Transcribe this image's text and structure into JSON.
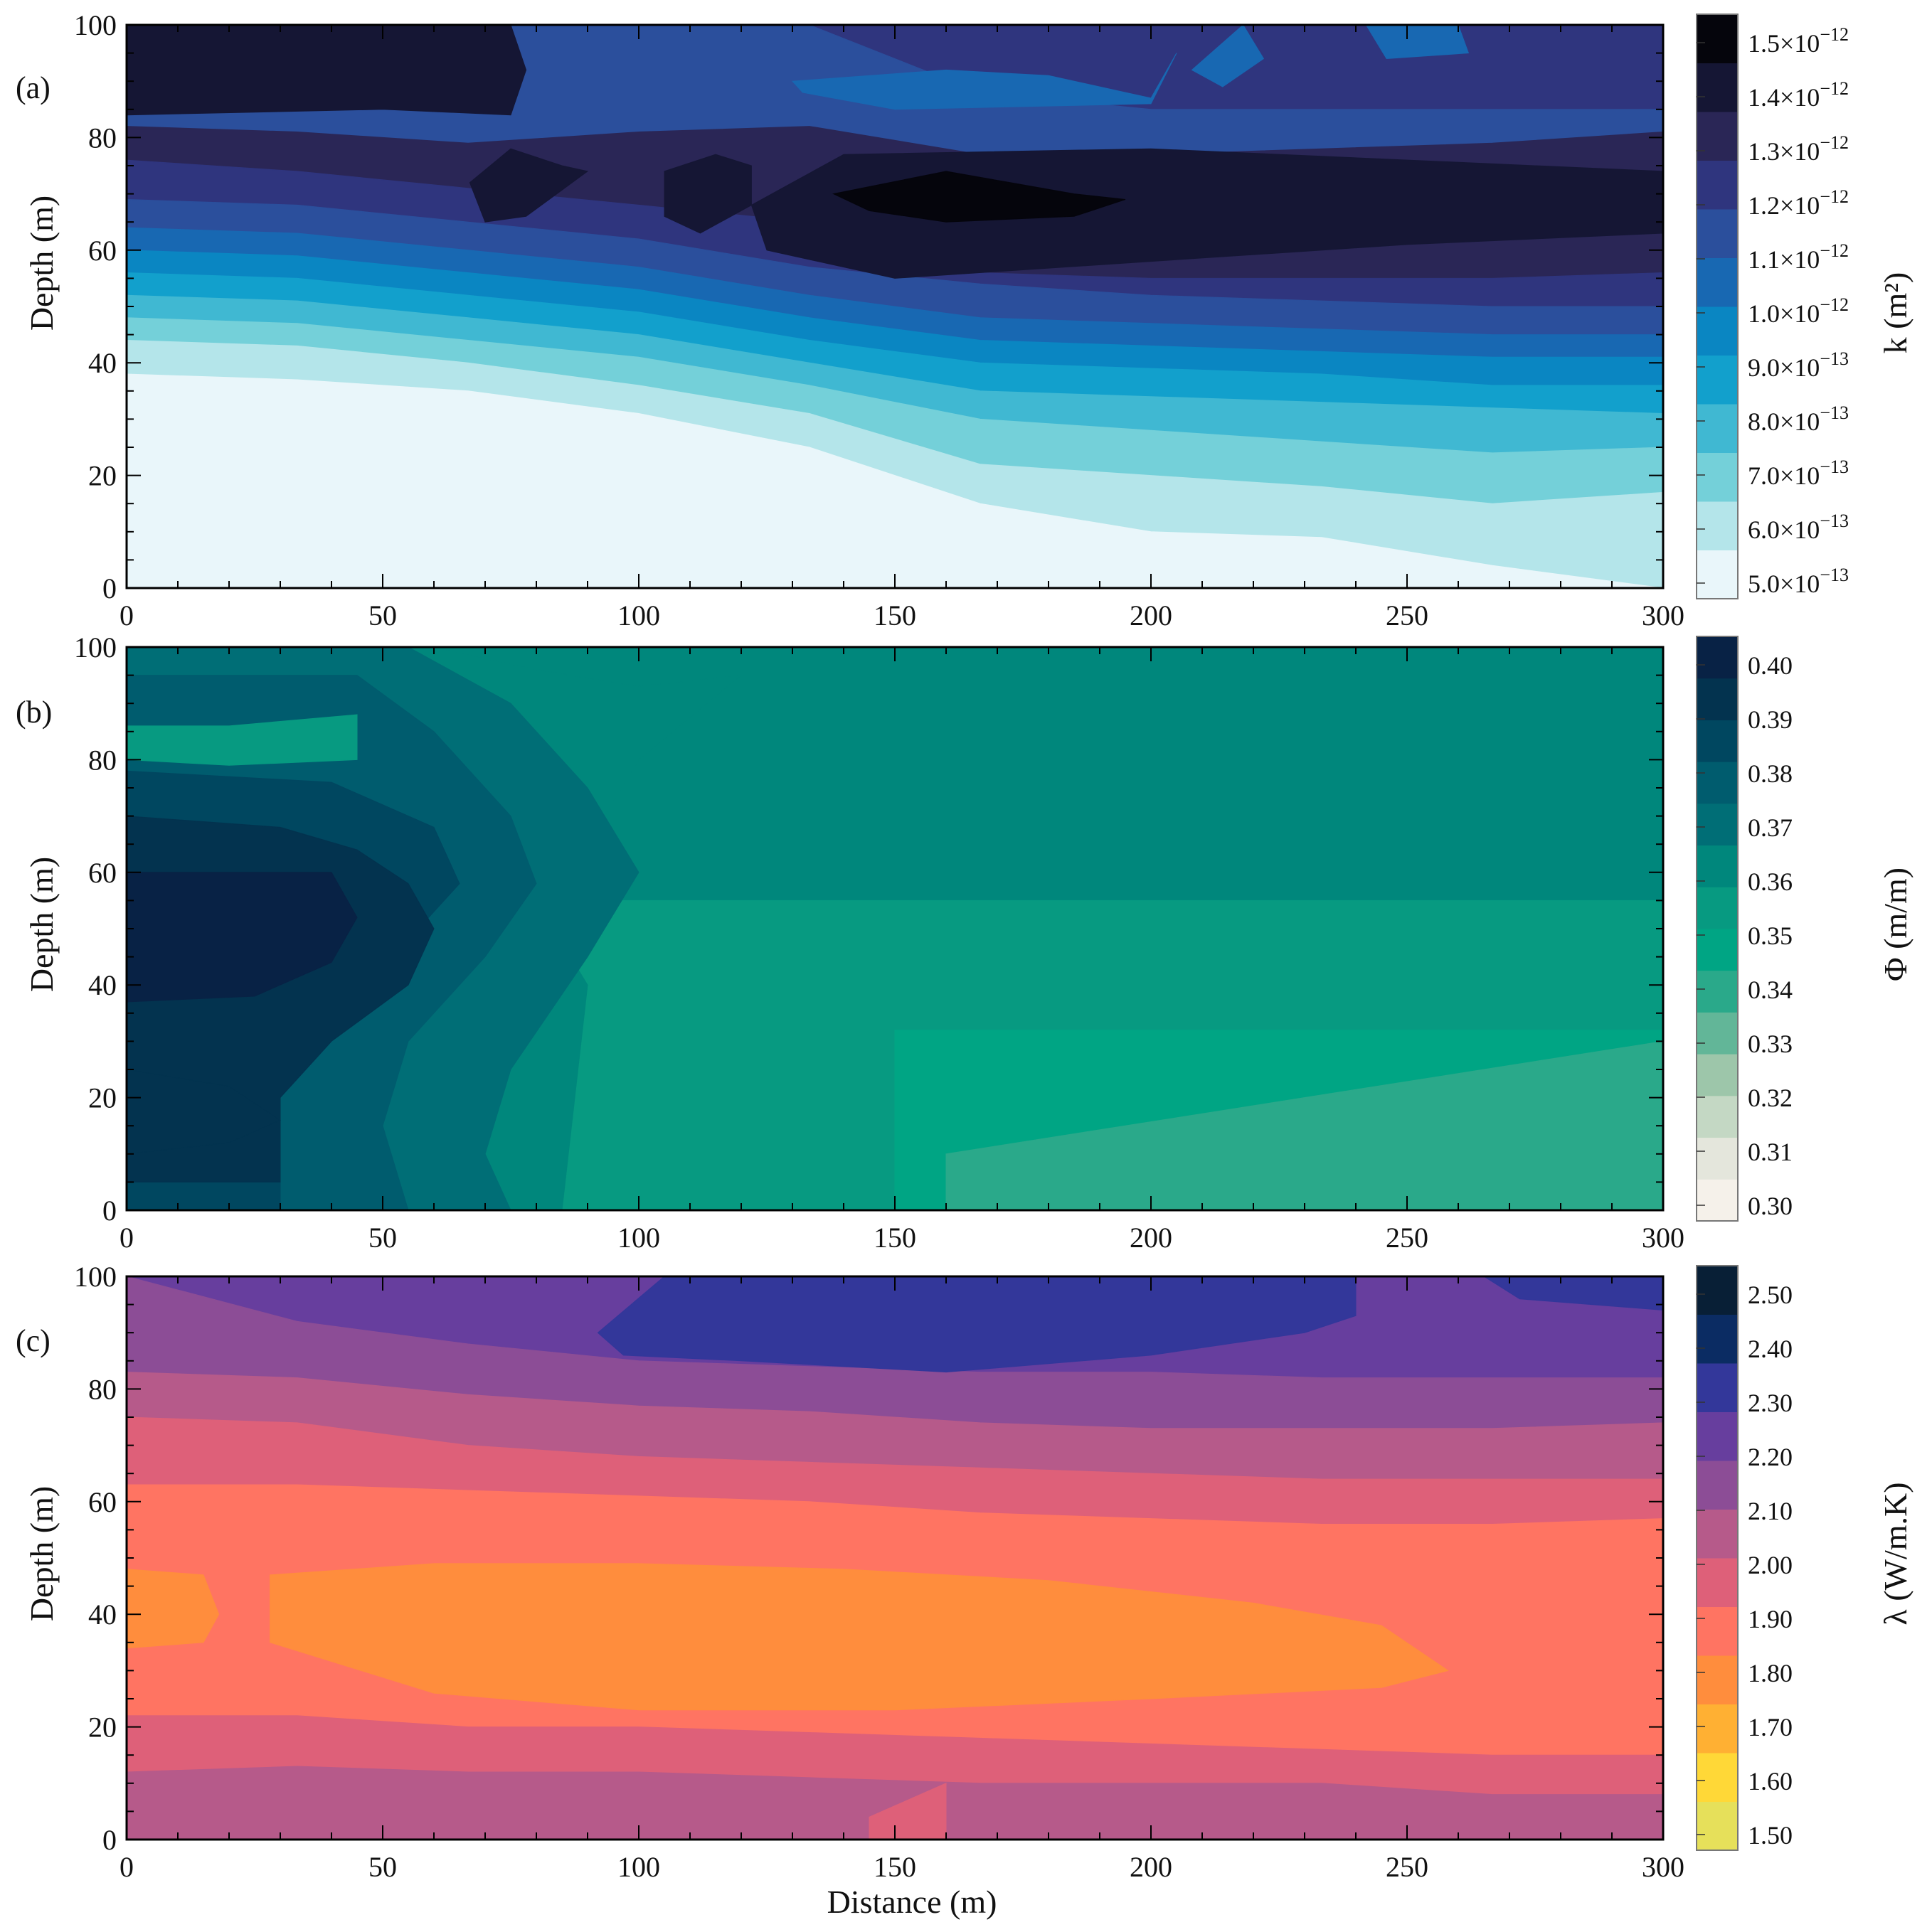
{
  "chart_data": [
    {
      "type": "heatmap",
      "panel_label": "(a)",
      "ylabel": "Depth (m)",
      "xlim": [
        0,
        300
      ],
      "ylim": [
        0,
        100
      ],
      "xticks": [
        "0",
        "50",
        "100",
        "150",
        "200",
        "250",
        "300"
      ],
      "yticks": [
        "0",
        "20",
        "40",
        "60",
        "80",
        "100"
      ],
      "colorbar": {
        "label": "k (m²)",
        "levels": [
          {
            "value": "5.0×10",
            "exp": "−13",
            "color": "#e9f6fa"
          },
          {
            "value": "6.0×10",
            "exp": "−13",
            "color": "#b4e5ea"
          },
          {
            "value": "7.0×10",
            "exp": "−13",
            "color": "#74d0d9"
          },
          {
            "value": "8.0×10",
            "exp": "−13",
            "color": "#40b8d2"
          },
          {
            "value": "9.0×10",
            "exp": "−13",
            "color": "#12a0cc"
          },
          {
            "value": "1.0×10",
            "exp": "−12",
            "color": "#0a86c2"
          },
          {
            "value": "1.1×10",
            "exp": "−12",
            "color": "#1868b2"
          },
          {
            "value": "1.2×10",
            "exp": "−12",
            "color": "#2b4f9c"
          },
          {
            "value": "1.3×10",
            "exp": "−12",
            "color": "#2f357e"
          },
          {
            "value": "1.4×10",
            "exp": "−12",
            "color": "#2a2656"
          },
          {
            "value": "1.5×10",
            "exp": "−12",
            "color": "#151634"
          }
        ],
        "top_color": "#05050c"
      },
      "bands": [
        {
          "top": [
            38,
            37,
            35,
            31,
            25,
            15,
            10,
            9,
            4,
            0
          ],
          "color": "#e9f6fa"
        },
        {
          "top": [
            44,
            43,
            40,
            36,
            31,
            22,
            20,
            18,
            15,
            17
          ],
          "color": "#b4e5ea"
        },
        {
          "top": [
            48,
            47,
            44,
            41,
            36,
            30,
            28,
            26,
            24,
            25
          ],
          "color": "#74d0d9"
        },
        {
          "top": [
            52,
            51,
            48,
            45,
            40,
            35,
            34,
            33,
            32,
            31
          ],
          "color": "#40b8d2"
        },
        {
          "top": [
            56,
            55,
            52,
            49,
            44,
            40,
            39,
            38,
            36,
            36
          ],
          "color": "#12a0cc"
        },
        {
          "top": [
            60,
            59,
            56,
            53,
            48,
            44,
            43,
            42,
            41,
            41
          ],
          "color": "#0a86c2"
        },
        {
          "top": [
            64,
            63,
            60,
            57,
            52,
            48,
            47,
            46,
            45,
            45
          ],
          "color": "#1868b2"
        },
        {
          "top": [
            69,
            68,
            65,
            62,
            57,
            54,
            52,
            51,
            50,
            50
          ],
          "color": "#2b4f9c"
        },
        {
          "top": [
            76,
            74,
            71,
            68,
            65,
            56,
            55,
            55,
            55,
            56
          ],
          "color": "#2f357e"
        },
        {
          "top": [
            82,
            81,
            79,
            81,
            82,
            77,
            77,
            78,
            79,
            81
          ],
          "color": "#2a2656"
        },
        {
          "top": [
            100,
            100,
            100,
            100,
            100,
            88,
            85,
            85,
            85,
            85
          ],
          "color": "#2b4f9c"
        },
        {
          "top": [
            100,
            100,
            100,
            100,
            100,
            100,
            100,
            100,
            100,
            100
          ],
          "color": "#2f357e"
        }
      ],
      "patches": [
        {
          "x": [
            0,
            50,
            75,
            78,
            75,
            50,
            0
          ],
          "y": [
            84,
            85,
            84,
            92,
            100,
            100,
            100
          ],
          "color": "#151634"
        },
        {
          "x": [
            67,
            75,
            85,
            90,
            78,
            70
          ],
          "y": [
            72,
            78,
            75,
            74,
            66,
            65
          ],
          "color": "#151634"
        },
        {
          "x": [
            105,
            115,
            122,
            122,
            112,
            105
          ],
          "y": [
            74,
            77,
            75,
            68,
            63,
            66
          ],
          "color": "#151634"
        },
        {
          "x": [
            122,
            140,
            200,
            300,
            300,
            250,
            200,
            150,
            125
          ],
          "y": [
            68,
            77,
            78,
            74,
            63,
            61,
            58,
            55,
            60
          ],
          "color": "#151634"
        },
        {
          "x": [
            138,
            160,
            185,
            195,
            185,
            160,
            145
          ],
          "y": [
            70,
            74,
            70,
            69,
            66,
            65,
            67
          ],
          "color": "#05050c"
        },
        {
          "x": [
            130,
            160,
            180,
            200,
            205,
            200,
            150,
            132
          ],
          "y": [
            90,
            92,
            91,
            87,
            95,
            86,
            85,
            88
          ],
          "color": "#1868b2"
        },
        {
          "x": [
            208,
            218,
            222,
            214
          ],
          "y": [
            92,
            100,
            94,
            89
          ],
          "color": "#1868b2"
        },
        {
          "x": [
            242,
            260,
            262,
            246
          ],
          "y": [
            100,
            100,
            95,
            94
          ],
          "color": "#1868b2"
        },
        {
          "x": [
            238,
            245,
            250,
            252,
            248,
            240
          ],
          "y": [
            0,
            4,
            5,
            0,
            0,
            0
          ],
          "color": "#e9f6fa"
        }
      ]
    },
    {
      "type": "heatmap",
      "panel_label": "(b)",
      "ylabel": "Depth (m)",
      "xlim": [
        0,
        300
      ],
      "ylim": [
        0,
        100
      ],
      "xticks": [
        "0",
        "50",
        "100",
        "150",
        "200",
        "250",
        "300"
      ],
      "yticks": [
        "0",
        "20",
        "40",
        "60",
        "80",
        "100"
      ],
      "colorbar": {
        "label": "Φ (m/m)",
        "levels": [
          {
            "value": "0.30",
            "color": "#f5f1ea"
          },
          {
            "value": "0.31",
            "color": "#e4e6dc"
          },
          {
            "value": "0.32",
            "color": "#c4d8c4"
          },
          {
            "value": "0.33",
            "color": "#9dc6aa"
          },
          {
            "value": "0.34",
            "color": "#62b698"
          },
          {
            "value": "0.35",
            "color": "#2aa98a"
          },
          {
            "value": "0.36",
            "color": "#00a584"
          },
          {
            "value": "0.37",
            "color": "#079a81"
          },
          {
            "value": "0.38",
            "color": "#00877c"
          },
          {
            "value": "0.39",
            "color": "#006e76"
          },
          {
            "value": "0.40",
            "color": "#005c6e"
          }
        ],
        "extra_colors": [
          "#004760",
          "#03334f",
          "#082245"
        ]
      },
      "base_color": "#00877c",
      "patches": [
        {
          "x": [
            0,
            300,
            300,
            0
          ],
          "y": [
            0,
            0,
            55,
            55
          ],
          "color": "#079a81"
        },
        {
          "x": [
            150,
            300,
            300,
            150
          ],
          "y": [
            0,
            0,
            32,
            32
          ],
          "color": "#00a584"
        },
        {
          "x": [
            160,
            300,
            300,
            160
          ],
          "y": [
            0,
            0,
            30,
            10
          ],
          "color": "#2aa98a"
        },
        {
          "x": [
            0,
            60,
            80,
            100,
            120,
            100,
            90,
            80,
            90,
            85,
            60,
            0
          ],
          "y": [
            100,
            100,
            96,
            93,
            95,
            80,
            65,
            55,
            40,
            0,
            0,
            0
          ],
          "color": "#00877c"
        },
        {
          "x": [
            0,
            55,
            75,
            90,
            100,
            90,
            75,
            70,
            75,
            55,
            0
          ],
          "y": [
            100,
            100,
            90,
            75,
            60,
            45,
            25,
            10,
            0,
            0,
            0
          ],
          "color": "#006e76"
        },
        {
          "x": [
            0,
            45,
            60,
            75,
            80,
            70,
            55,
            50,
            55,
            35,
            0
          ],
          "y": [
            95,
            95,
            85,
            70,
            58,
            45,
            30,
            15,
            0,
            0,
            0
          ],
          "color": "#005c6e"
        },
        {
          "x": [
            0,
            20,
            45,
            45,
            20,
            0
          ],
          "y": [
            86,
            86,
            88,
            80,
            79,
            80
          ],
          "color": "#079a81"
        },
        {
          "x": [
            0,
            40,
            60,
            65,
            55,
            45,
            30,
            30,
            0
          ],
          "y": [
            78,
            76,
            68,
            58,
            48,
            35,
            20,
            0,
            0
          ],
          "color": "#004760"
        },
        {
          "x": [
            0,
            30,
            45,
            55,
            60,
            55,
            40,
            30,
            30,
            0
          ],
          "y": [
            70,
            68,
            64,
            58,
            50,
            40,
            30,
            20,
            5,
            5
          ],
          "color": "#03334f"
        },
        {
          "x": [
            0,
            20,
            40,
            45,
            40,
            25,
            0
          ],
          "y": [
            60,
            60,
            60,
            52,
            44,
            38,
            37
          ],
          "color": "#082245"
        },
        {
          "x": [
            0,
            20,
            30,
            20,
            0
          ],
          "y": [
            25,
            22,
            16,
            12,
            10
          ],
          "color": "#03334f"
        }
      ]
    },
    {
      "type": "heatmap",
      "panel_label": "(c)",
      "ylabel": "Depth (m)",
      "xlabel": "Distance (m)",
      "xlim": [
        0,
        300
      ],
      "ylim": [
        0,
        100
      ],
      "xticks": [
        "0",
        "50",
        "100",
        "150",
        "200",
        "250",
        "300"
      ],
      "yticks": [
        "0",
        "20",
        "40",
        "60",
        "80",
        "100"
      ],
      "colorbar": {
        "label": "λ (W/m.K)",
        "levels": [
          {
            "value": "1.50",
            "color": "#e6e05a"
          },
          {
            "value": "1.60",
            "color": "#ffd837"
          },
          {
            "value": "1.70",
            "color": "#ffb033"
          },
          {
            "value": "1.80",
            "color": "#ff8d3d"
          },
          {
            "value": "1.90",
            "color": "#ff7462"
          },
          {
            "value": "2.00",
            "color": "#de6079"
          },
          {
            "value": "2.10",
            "color": "#b65a8a"
          },
          {
            "value": "2.20",
            "color": "#8c4d96"
          },
          {
            "value": "2.30",
            "color": "#673e9e"
          },
          {
            "value": "2.40",
            "color": "#33379a"
          },
          {
            "value": "2.50",
            "color": "#0b2c63"
          }
        ],
        "top_color": "#081f36"
      },
      "bands": [
        {
          "top": [
            12,
            13,
            12,
            12,
            11,
            10,
            10,
            10,
            8,
            8
          ],
          "color": "#b65a8a"
        },
        {
          "top": [
            22,
            22,
            20,
            20,
            19,
            18,
            17,
            16,
            15,
            15
          ],
          "color": "#de6079"
        },
        {
          "top": [
            63,
            63,
            62,
            61,
            60,
            58,
            57,
            56,
            56,
            57
          ],
          "color": "#ff7462"
        },
        {
          "top": [
            75,
            74,
            70,
            68,
            67,
            66,
            65,
            64,
            64,
            64
          ],
          "color": "#de6079"
        },
        {
          "top": [
            83,
            82,
            79,
            77,
            76,
            74,
            73,
            73,
            73,
            74
          ],
          "color": "#b65a8a"
        },
        {
          "top": [
            100,
            92,
            88,
            85,
            84,
            83,
            83,
            82,
            82,
            82
          ],
          "color": "#8c4d96"
        },
        {
          "top": [
            100,
            100,
            100,
            100,
            100,
            100,
            100,
            100,
            100,
            100
          ],
          "color": "#673e9e"
        }
      ],
      "patches": [
        {
          "x": [
            0,
            15,
            18,
            15,
            0
          ],
          "y": [
            48,
            47,
            40,
            35,
            34
          ],
          "color": "#ff8d3d"
        },
        {
          "x": [
            28,
            60,
            100,
            140,
            180,
            220,
            245,
            258,
            245,
            200,
            150,
            100,
            60,
            28
          ],
          "y": [
            47,
            49,
            49,
            48,
            46,
            42,
            38,
            30,
            27,
            25,
            23,
            23,
            26,
            35
          ],
          "color": "#ff8d3d"
        },
        {
          "x": [
            145,
            160,
            160,
            145
          ],
          "y": [
            0,
            0,
            10,
            4
          ],
          "color": "#de6079"
        },
        {
          "x": [
            92,
            105,
            150,
            200,
            240,
            240,
            230,
            200,
            160,
            120,
            97
          ],
          "y": [
            90,
            100,
            100,
            100,
            100,
            93,
            90,
            86,
            83,
            85,
            86
          ],
          "color": "#33379a"
        },
        {
          "x": [
            265,
            300,
            300,
            272
          ],
          "y": [
            100,
            100,
            94,
            96
          ],
          "color": "#33379a"
        }
      ]
    }
  ]
}
